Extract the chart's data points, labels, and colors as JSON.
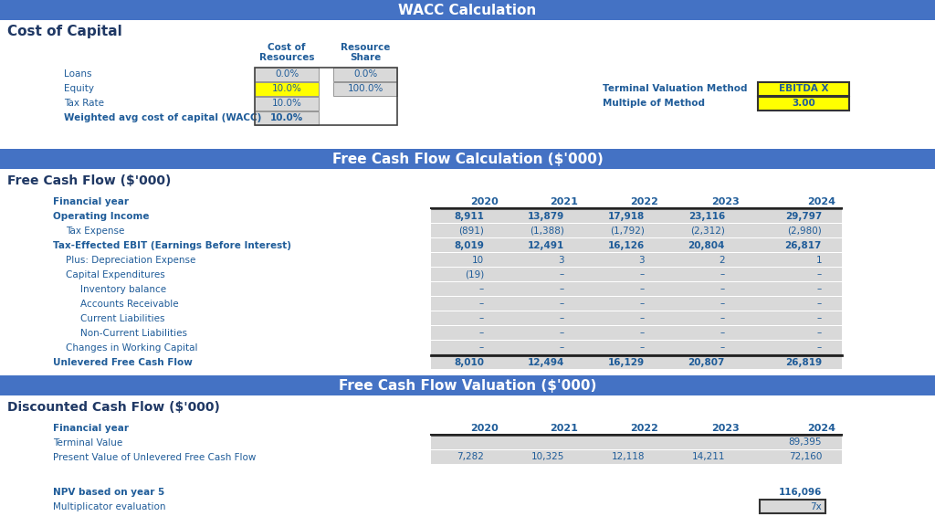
{
  "title1": "WACC Calculation",
  "title2": "Free Cash Flow Calculation ($'000)",
  "title3": "Free Cash Flow Valuation ($'000)",
  "section1_header": "Cost of Capital",
  "section2_header": "Free Cash Flow ($'000)",
  "section3_header": "Discounted Cash Flow ($'000)",
  "header_bg": "#4472C4",
  "header_fg": "#FFFFFF",
  "dark_blue": "#1F3864",
  "blue_text": "#1F5C99",
  "row_bg_light": "#D9D9D9",
  "row_bg_white": "#FFFFFF",
  "yellow_bg": "#FFFF00",
  "wacc_rows": [
    {
      "label": "Loans",
      "cost": "0.0%",
      "share": "0.0%",
      "cost_yellow": false,
      "share_yellow": false,
      "bold": false
    },
    {
      "label": "Equity",
      "cost": "10.0%",
      "share": "100.0%",
      "cost_yellow": true,
      "share_yellow": false,
      "bold": false
    },
    {
      "label": "Tax Rate",
      "cost": "10.0%",
      "share": null,
      "cost_yellow": false,
      "share_yellow": false,
      "bold": false
    },
    {
      "label": "Weighted avg cost of capital (WACC)",
      "cost": "10.0%",
      "share": null,
      "cost_yellow": false,
      "share_yellow": false,
      "bold": true
    }
  ],
  "terminal_labels": [
    "Terminal Valuation Method",
    "Multiple of Method"
  ],
  "terminal_values": [
    "EBITDA X",
    "3.00"
  ],
  "fcf_rows": [
    {
      "label": "Financial year",
      "bold": true,
      "indent": 0,
      "values": [
        "2020",
        "2021",
        "2022",
        "2023",
        "2024"
      ],
      "header_row": true
    },
    {
      "label": "Operating Income",
      "bold": true,
      "indent": 0,
      "values": [
        "8,911",
        "13,879",
        "17,918",
        "23,116",
        "29,797"
      ]
    },
    {
      "label": "Tax Expense",
      "bold": false,
      "indent": 1,
      "values": [
        "(891)",
        "(1,388)",
        "(1,792)",
        "(2,312)",
        "(2,980)"
      ]
    },
    {
      "label": "Tax-Effected EBIT (Earnings Before Interest)",
      "bold": true,
      "indent": 0,
      "values": [
        "8,019",
        "12,491",
        "16,126",
        "20,804",
        "26,817"
      ]
    },
    {
      "label": "Plus: Depreciation Expense",
      "bold": false,
      "indent": 1,
      "values": [
        "10",
        "3",
        "3",
        "2",
        "1"
      ]
    },
    {
      "label": "Capital Expenditures",
      "bold": false,
      "indent": 1,
      "values": [
        "(19)",
        "–",
        "–",
        "–",
        "–"
      ]
    },
    {
      "label": "Inventory balance",
      "bold": false,
      "indent": 2,
      "values": [
        "–",
        "–",
        "–",
        "–",
        "–"
      ]
    },
    {
      "label": "Accounts Receivable",
      "bold": false,
      "indent": 2,
      "values": [
        "–",
        "–",
        "–",
        "–",
        "–"
      ]
    },
    {
      "label": "Current Liabilities",
      "bold": false,
      "indent": 2,
      "values": [
        "–",
        "–",
        "–",
        "–",
        "–"
      ]
    },
    {
      "label": "Non-Current Liabilities",
      "bold": false,
      "indent": 2,
      "values": [
        "–",
        "–",
        "–",
        "–",
        "–"
      ]
    },
    {
      "label": "Changes in Working Capital",
      "bold": false,
      "indent": 1,
      "values": [
        "–",
        "–",
        "–",
        "–",
        "–"
      ]
    },
    {
      "label": "Unlevered Free Cash Flow",
      "bold": true,
      "indent": 0,
      "values": [
        "8,010",
        "12,494",
        "16,129",
        "20,807",
        "26,819"
      ],
      "total_row": true
    }
  ],
  "dcf_rows": [
    {
      "label": "Financial year",
      "bold": true,
      "indent": 0,
      "values": [
        "2020",
        "2021",
        "2022",
        "2023",
        "2024"
      ],
      "header_row": true
    },
    {
      "label": "Terminal Value",
      "bold": false,
      "indent": 0,
      "values": [
        "",
        "",
        "",
        "",
        "89,395"
      ]
    },
    {
      "label": "Present Value of Unlevered Free Cash Flow",
      "bold": false,
      "indent": 0,
      "values": [
        "7,282",
        "10,325",
        "12,118",
        "14,211",
        "72,160"
      ]
    },
    {
      "label": "",
      "bold": false,
      "indent": 0,
      "values": [
        "",
        "",
        "",
        "",
        ""
      ],
      "spacer": true
    },
    {
      "label": "NPV based on year 5",
      "bold": true,
      "indent": 0,
      "values": [
        "",
        "",
        "",
        "",
        "116,096"
      ],
      "no_bg": true
    },
    {
      "label": "Multiplicator evaluation",
      "bold": false,
      "indent": 0,
      "values": [
        "",
        "",
        "",
        "",
        "7x"
      ],
      "boxed_last": true,
      "no_bg": true
    }
  ],
  "fig_width": 10.24,
  "fig_height": 5.77,
  "bg_color": "#FFFFFF"
}
